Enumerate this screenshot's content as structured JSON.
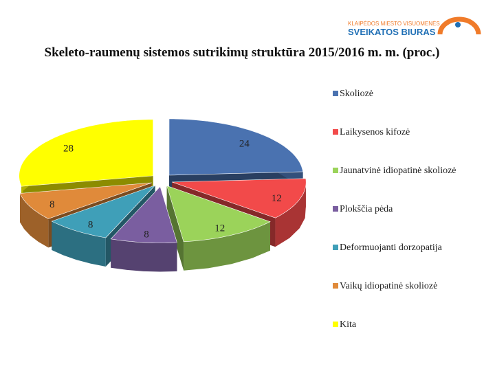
{
  "logo": {
    "line1": "KLAIPĖDOS MIESTO VISUOMENĖS",
    "line2": "SVEIKATOS BIURAS"
  },
  "chart_data": {
    "type": "pie",
    "title": "Skeleto-raumenų sistemos sutrikimų struktūra 2015/2016 m. m. (proc.)",
    "categories": [
      "Skoliozė",
      "Laikysenos kifozė",
      "Jaunatvinė idiopatinė skoliozė",
      "Plokščia pėda",
      "Deformuojanti dorzopatija",
      "Vaikų idiopatinė skoliozė",
      "Kita"
    ],
    "values": [
      24,
      12,
      12,
      8,
      8,
      8,
      28
    ],
    "colors": [
      "#4a72b0",
      "#f24a4a",
      "#9bd35a",
      "#7a5ea0",
      "#3f9fb8",
      "#e08a3a",
      "#ffff00"
    ],
    "legend": "right"
  }
}
